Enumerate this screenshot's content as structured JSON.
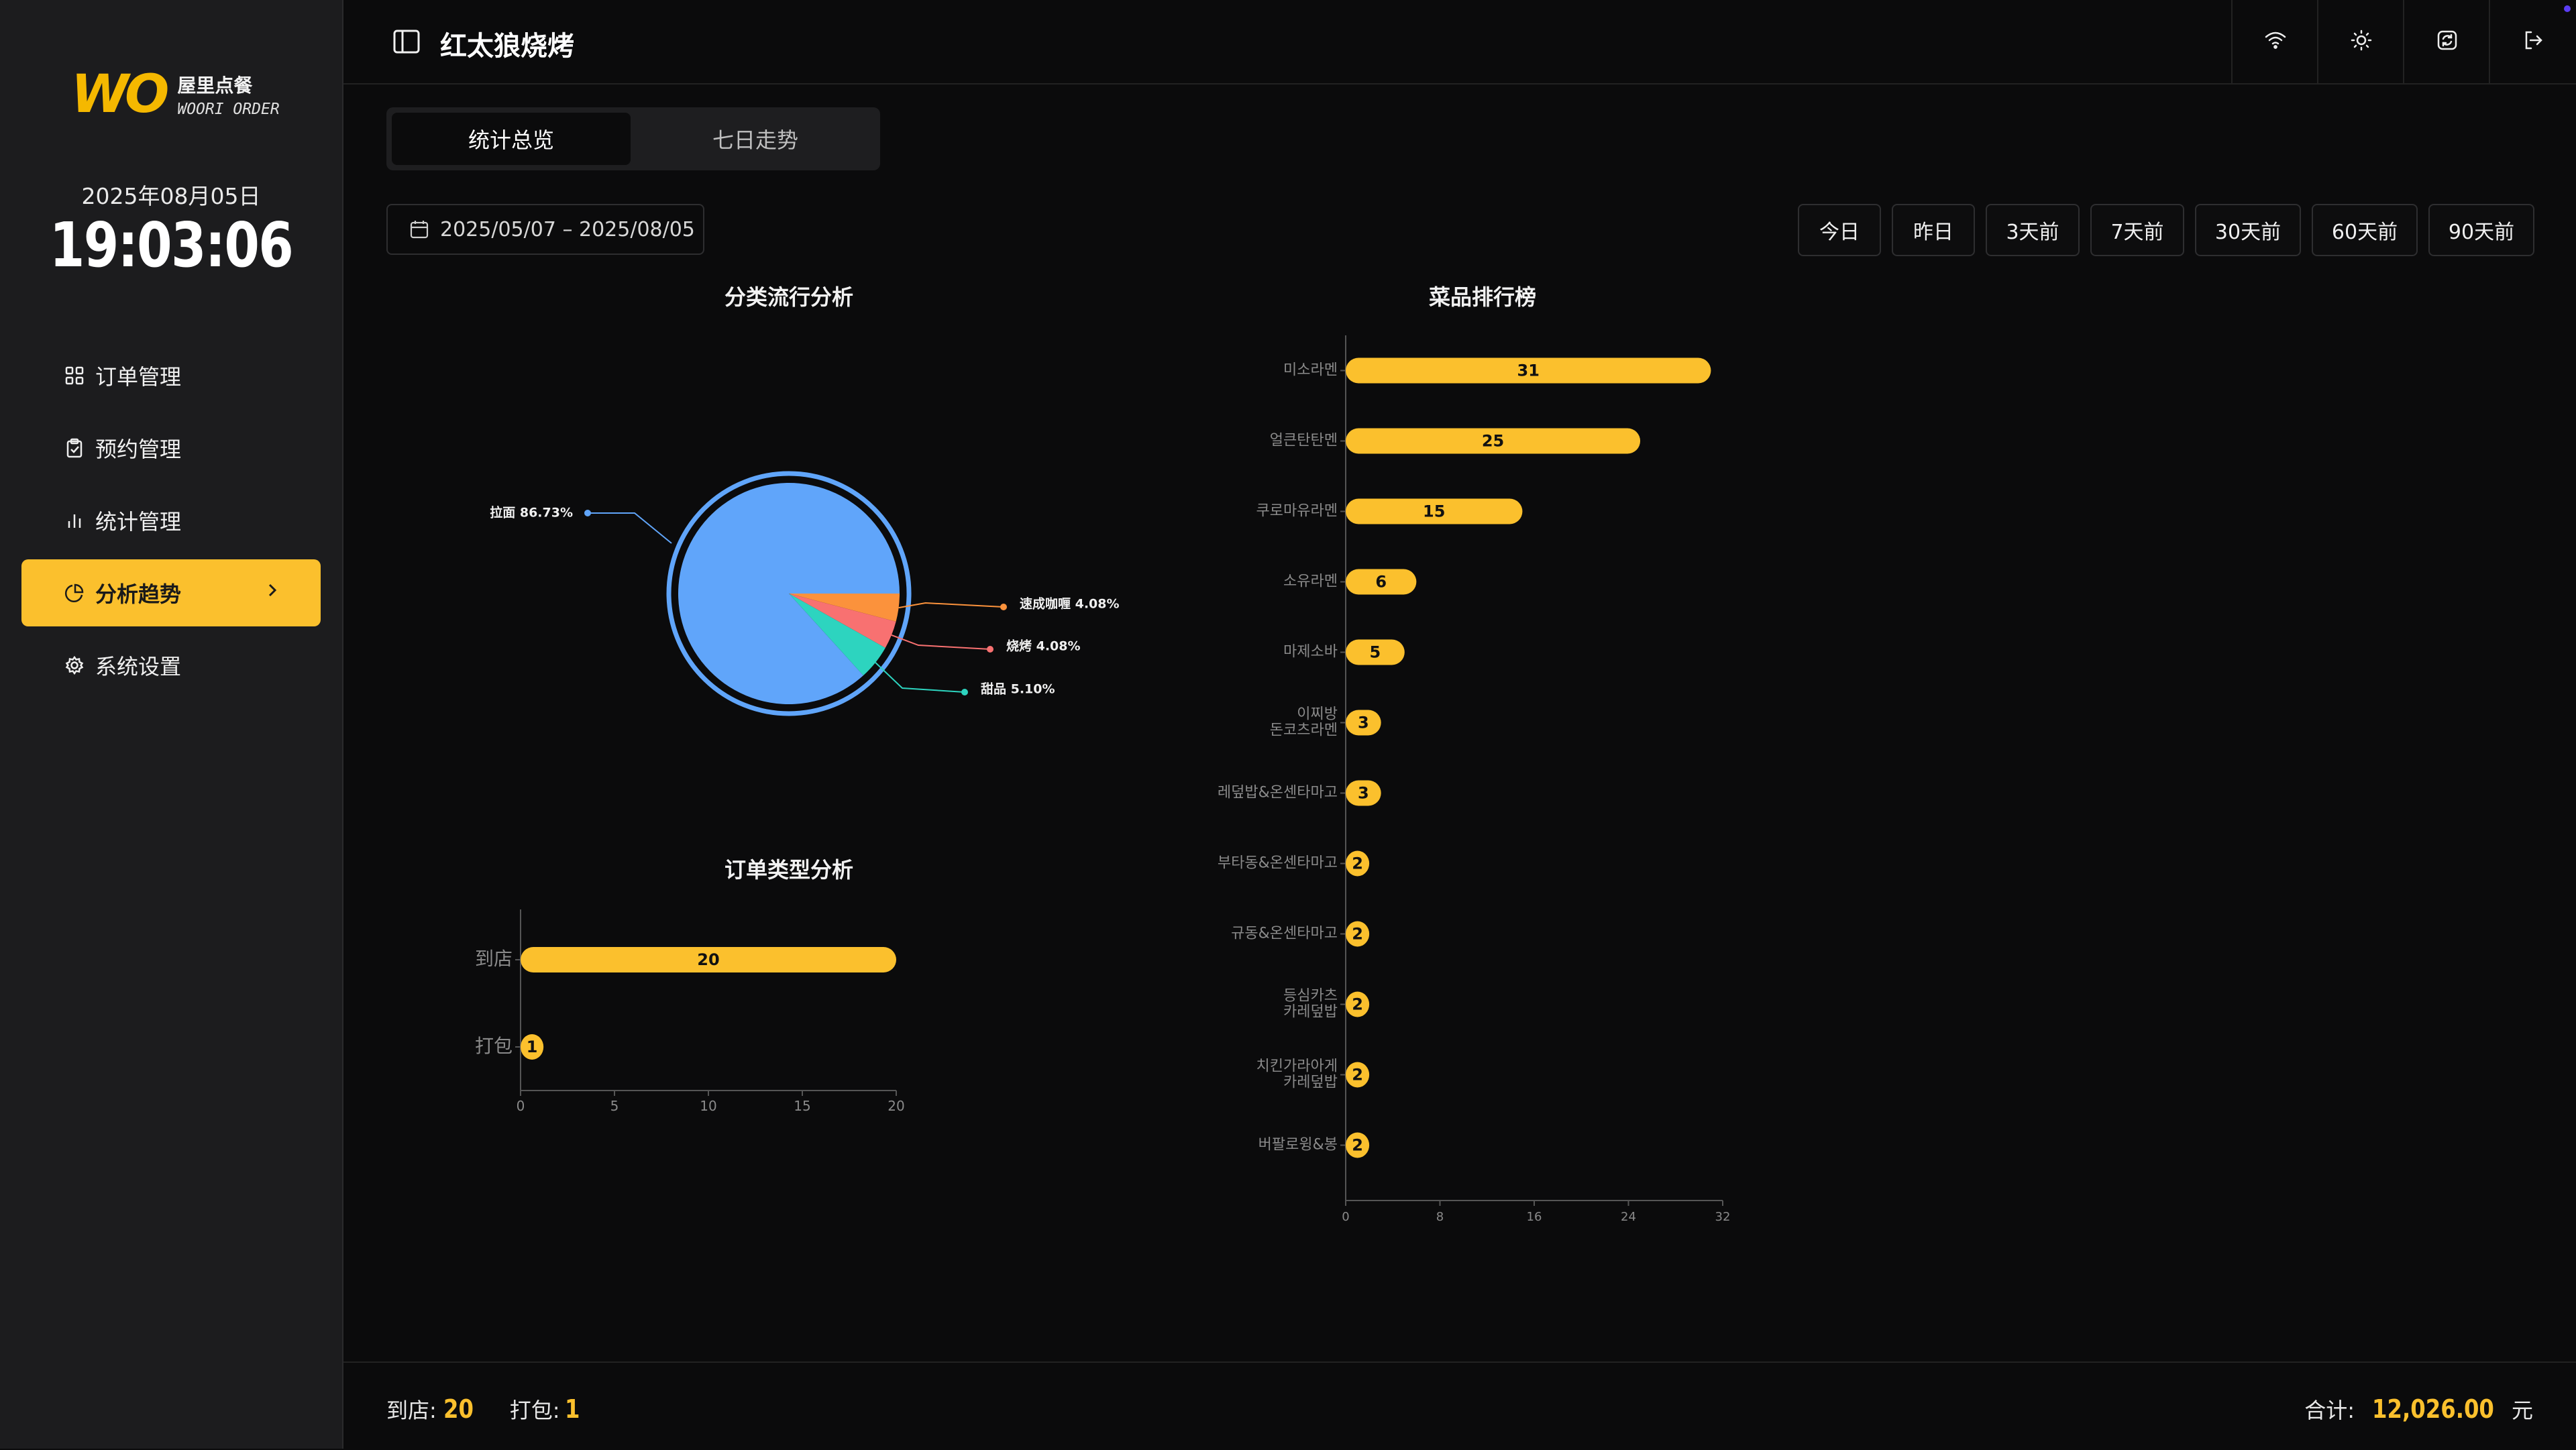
{
  "sidebar": {
    "brand_cn": "屋里点餐",
    "brand_en": "WOORI ORDER",
    "date": "2025年08月05日",
    "time": "19:03:06",
    "items": [
      {
        "label": "订单管理",
        "icon": "grid-icon"
      },
      {
        "label": "预约管理",
        "icon": "clipboard-icon"
      },
      {
        "label": "统计管理",
        "icon": "bar-chart-icon"
      },
      {
        "label": "分析趋势",
        "icon": "pie-chart-icon",
        "active": true
      },
      {
        "label": "系统设置",
        "icon": "gear-icon"
      }
    ]
  },
  "header": {
    "title": "红太狼烧烤",
    "icons": [
      "wifi-icon",
      "sun-icon",
      "refresh-icon",
      "logout-icon"
    ]
  },
  "tabs": [
    {
      "label": "统计总览",
      "active": true
    },
    {
      "label": "七日走势",
      "active": false
    }
  ],
  "filters": {
    "date_range": "2025/05/07 – 2025/08/05",
    "quick": [
      "今日",
      "昨日",
      "3天前",
      "7天前",
      "30天前",
      "60天前",
      "90天前"
    ]
  },
  "colors": {
    "accent": "#fbc02d",
    "pie": [
      "#60a5fa",
      "#2dd4bf",
      "#f87171",
      "#fb923c"
    ]
  },
  "chart_data": [
    {
      "type": "pie",
      "title": "分类流行分析",
      "slices": [
        {
          "label": "拉面",
          "value": 86.73,
          "display": "拉面 86.73%"
        },
        {
          "label": "甜品",
          "value": 5.1,
          "display": "甜品 5.10%"
        },
        {
          "label": "烧烤",
          "value": 4.08,
          "display": "烧烤 4.08%"
        },
        {
          "label": "速成咖喱",
          "value": 4.08,
          "display": "速成咖喱 4.08%"
        }
      ]
    },
    {
      "type": "bar",
      "orientation": "horizontal",
      "title": "订单类型分析",
      "categories": [
        "到店",
        "打包"
      ],
      "values": [
        20,
        1
      ],
      "xlim": [
        0,
        20
      ],
      "ticks": [
        0,
        5,
        10,
        15,
        20
      ]
    },
    {
      "type": "bar",
      "orientation": "horizontal",
      "title": "菜品排行榜",
      "categories": [
        "미소라멘",
        "얼큰탄탄멘",
        "쿠로마유라멘",
        "소유라멘",
        "마제소바",
        "이찌방 돈코츠라멘",
        "레덮밥&온센타마고",
        "부타동&온센타마고",
        "규동&온센타마고",
        "등심카츠 카레덮밥",
        "치킨가라아게 카레덮밥",
        "버팔로윙&봉"
      ],
      "values": [
        31,
        25,
        15,
        6,
        5,
        3,
        3,
        2,
        2,
        2,
        2,
        2
      ],
      "xlim": [
        0,
        32
      ],
      "ticks": [
        0,
        8,
        16,
        24,
        32
      ]
    }
  ],
  "footer": {
    "dine_in_label": "到店:",
    "dine_in_value": "20",
    "takeout_label": "打包:",
    "takeout_value": "1",
    "total_label": "合计:",
    "total_value": "12,026.00",
    "currency": "元"
  }
}
